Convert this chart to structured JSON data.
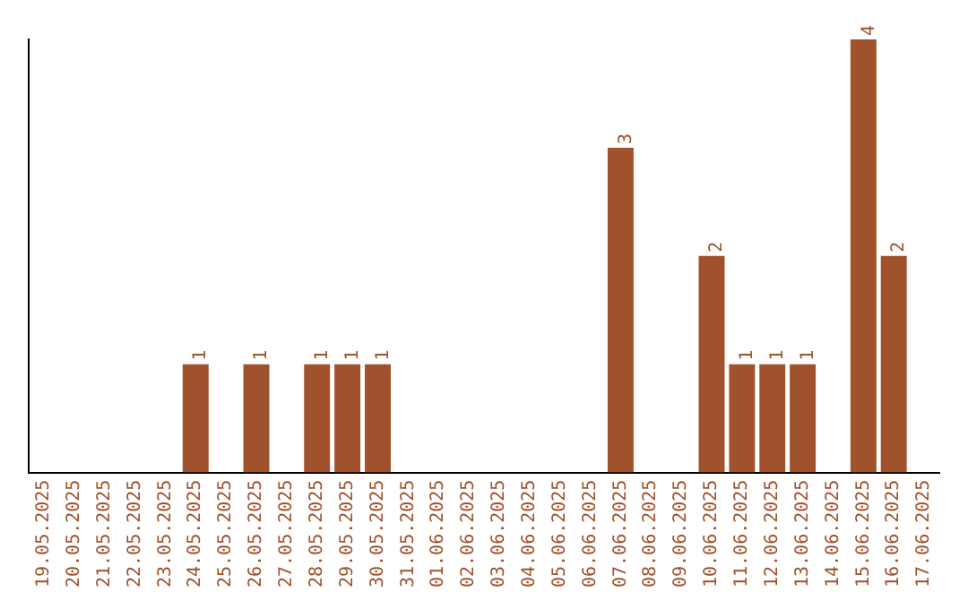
{
  "chart_data": {
    "type": "bar",
    "categories": [
      "19.05.2025",
      "20.05.2025",
      "21.05.2025",
      "22.05.2025",
      "23.05.2025",
      "24.05.2025",
      "25.05.2025",
      "26.05.2025",
      "27.05.2025",
      "28.05.2025",
      "29.05.2025",
      "30.05.2025",
      "31.05.2025",
      "01.06.2025",
      "02.06.2025",
      "03.06.2025",
      "04.06.2025",
      "05.06.2025",
      "06.06.2025",
      "07.06.2025",
      "08.06.2025",
      "09.06.2025",
      "10.06.2025",
      "11.06.2025",
      "12.06.2025",
      "13.06.2025",
      "14.06.2025",
      "15.06.2025",
      "16.06.2025",
      "17.06.2025"
    ],
    "values": [
      0,
      0,
      0,
      0,
      0,
      1,
      0,
      1,
      0,
      1,
      1,
      1,
      0,
      0,
      0,
      0,
      0,
      0,
      0,
      3,
      0,
      0,
      2,
      1,
      1,
      1,
      0,
      4,
      2,
      0
    ],
    "value_labels": [
      null,
      null,
      null,
      null,
      null,
      "1",
      null,
      "1",
      null,
      "1",
      "1",
      "1",
      null,
      null,
      null,
      null,
      null,
      null,
      null,
      "3",
      null,
      null,
      "2",
      "1",
      "1",
      "1",
      null,
      "4",
      "2",
      null
    ],
    "color": "#a0522d",
    "grid": false,
    "legend": false,
    "tick_labels": "x"
  }
}
